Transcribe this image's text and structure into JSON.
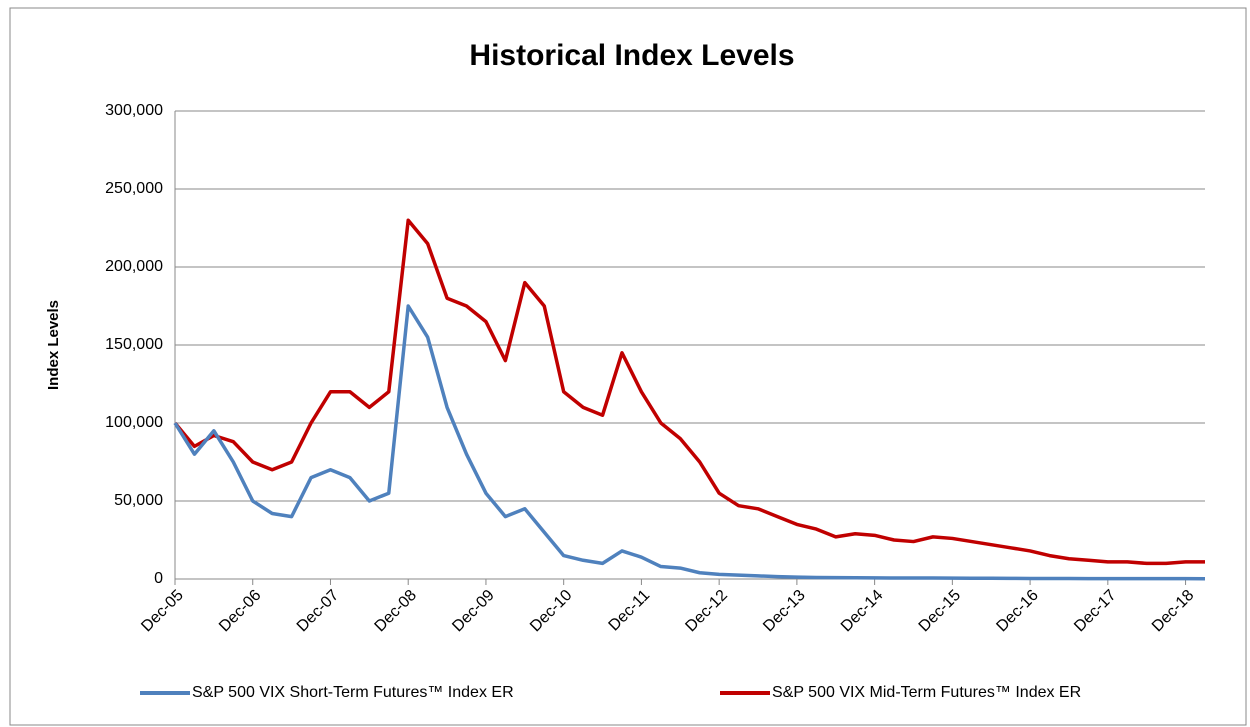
{
  "chart_data": {
    "type": "line",
    "title": "Historical Index Levels",
    "y_label": "Index Levels",
    "categories": [
      "Dec-05",
      null,
      null,
      null,
      "Dec-06",
      null,
      null,
      null,
      "Dec-07",
      null,
      null,
      null,
      "Dec-08",
      null,
      null,
      null,
      "Dec-09",
      null,
      null,
      null,
      "Dec-10",
      null,
      null,
      null,
      "Dec-11",
      null,
      null,
      null,
      "Dec-12",
      null,
      null,
      null,
      "Dec-13",
      null,
      null,
      null,
      "Dec-14",
      null,
      null,
      null,
      "Dec-15",
      null,
      null,
      null,
      "Dec-16",
      null,
      null,
      null,
      "Dec-17",
      null,
      null,
      null,
      "Dec-18",
      null
    ],
    "series": [
      {
        "name": "S&P 500 VIX Short-Term Futures™ Index ER",
        "color": "#4f81bd",
        "values": [
          100000,
          80000,
          95000,
          75000,
          50000,
          42000,
          40000,
          65000,
          70000,
          65000,
          50000,
          55000,
          175000,
          155000,
          110000,
          80000,
          55000,
          40000,
          45000,
          30000,
          15000,
          12000,
          10000,
          18000,
          14000,
          8000,
          7000,
          4000,
          3000,
          2500,
          2000,
          1500,
          1200,
          1000,
          900,
          800,
          700,
          650,
          600,
          600,
          550,
          500,
          450,
          400,
          350,
          300,
          280,
          260,
          250,
          240,
          230,
          220,
          210,
          200
        ]
      },
      {
        "name": "S&P 500 VIX Mid-Term Futures™ Index ER",
        "color": "#c00000",
        "values": [
          100000,
          85000,
          92000,
          88000,
          75000,
          70000,
          75000,
          100000,
          120000,
          120000,
          110000,
          120000,
          230000,
          215000,
          180000,
          175000,
          165000,
          140000,
          190000,
          175000,
          120000,
          110000,
          105000,
          145000,
          120000,
          100000,
          90000,
          75000,
          55000,
          47000,
          45000,
          40000,
          35000,
          32000,
          27000,
          29000,
          28000,
          25000,
          24000,
          27000,
          26000,
          24000,
          22000,
          20000,
          18000,
          15000,
          13000,
          12000,
          11000,
          11000,
          10000,
          10000,
          11000,
          11000
        ]
      }
    ],
    "ylim": [
      0,
      300000
    ],
    "yticks": [
      0,
      {
        "value": 50000,
        "label": "50,000"
      },
      {
        "value": 100000,
        "label": "100,000"
      },
      {
        "value": 150000,
        "label": "150,000"
      },
      {
        "value": 200000,
        "label": "200,000"
      },
      {
        "value": 250000,
        "label": "250,000"
      },
      {
        "value": 300000,
        "label": "300,000"
      }
    ],
    "grid": true,
    "legend": "bottom"
  }
}
